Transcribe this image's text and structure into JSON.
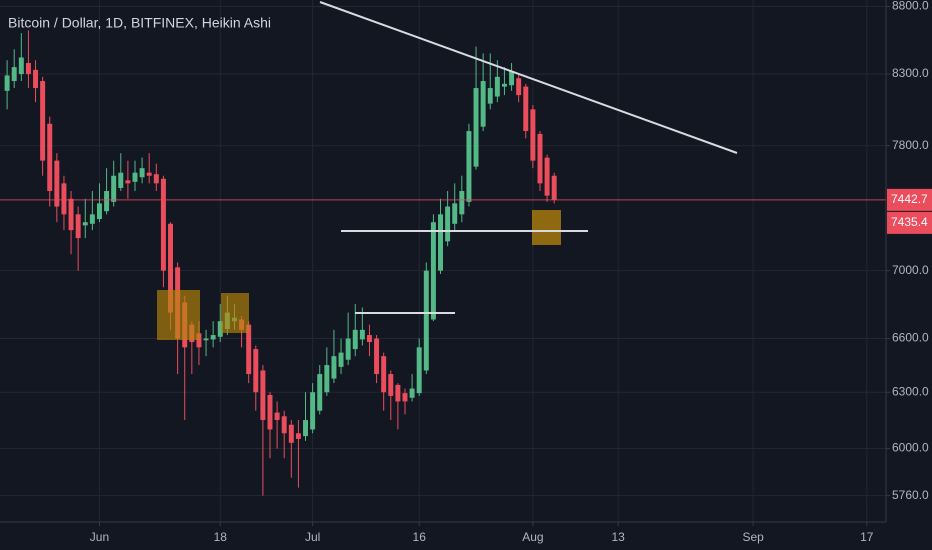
{
  "chart_data": {
    "type": "candlestick",
    "title": "Bitcoin / Dollar, 1D, BITFINEX, Heikin Ashi",
    "up_color": "#53b987",
    "down_color": "#eb4d5c",
    "log_scale": true,
    "grid": true,
    "xlim": [
      -1,
      123.7
    ],
    "xticks": [
      {
        "value": 13,
        "label": "Jun"
      },
      {
        "value": 30,
        "label": "18"
      },
      {
        "value": 43,
        "label": "Jul"
      },
      {
        "value": 58,
        "label": "16"
      },
      {
        "value": 74,
        "label": "Aug"
      },
      {
        "value": 86,
        "label": "13"
      },
      {
        "value": 105,
        "label": "Sep"
      },
      {
        "value": 121,
        "label": "17"
      }
    ],
    "ylim": [
      5630,
      8850
    ],
    "yticks": [
      {
        "value": 8800,
        "label": "8800.0"
      },
      {
        "value": 8300,
        "label": "8300.0"
      },
      {
        "value": 7800,
        "label": "7800.0"
      },
      {
        "value": 7000,
        "label": "7000.0"
      },
      {
        "value": 6600,
        "label": "6600.0"
      },
      {
        "value": 6300,
        "label": "6300.0"
      },
      {
        "value": 6000,
        "label": "6000.0"
      },
      {
        "value": 5760,
        "label": "5760.0"
      }
    ],
    "price_markers": [
      7442.7,
      7435.4
    ],
    "open": [
      8180,
      8250,
      8300,
      8380,
      8330,
      8250,
      7950,
      7700,
      7550,
      7450,
      7350,
      7280,
      7290,
      7320,
      7370,
      7430,
      7520,
      7570,
      7560,
      7590,
      7620,
      7610,
      7580,
      7290,
      7020,
      6810,
      6680,
      6630,
      6590,
      6595,
      6610,
      6655,
      6700,
      6710,
      6680,
      6540,
      6420,
      6285,
      6190,
      6170,
      6125,
      6080,
      6065,
      6100,
      6200,
      6300,
      6375,
      6440,
      6480,
      6540,
      6595,
      6620,
      6600,
      6500,
      6400,
      6340,
      6295,
      6270,
      6295,
      6420,
      6710,
      7000,
      7180,
      7290,
      7350,
      7430,
      7660,
      7930,
      8090,
      8140,
      8210,
      8220,
      8270,
      8210,
      8050,
      7880,
      7720,
      7600
    ],
    "high": [
      8400,
      8480,
      8600,
      8620,
      8400,
      8280,
      8000,
      7750,
      7600,
      7500,
      7400,
      7450,
      7500,
      7550,
      7650,
      7700,
      7750,
      7700,
      7700,
      7720,
      7750,
      7680,
      7600,
      7300,
      7050,
      6850,
      6700,
      6700,
      6650,
      6700,
      6800,
      6850,
      6800,
      6730,
      6700,
      6560,
      6450,
      6300,
      6250,
      6200,
      6150,
      6150,
      6300,
      6350,
      6450,
      6550,
      6650,
      6600,
      6750,
      6800,
      6780,
      6680,
      6620,
      6520,
      6420,
      6350,
      6320,
      6400,
      6600,
      7050,
      7350,
      7450,
      7500,
      7550,
      7600,
      7950,
      8500,
      8450,
      8450,
      8400,
      8350,
      8380,
      8300,
      8230,
      8080,
      7900,
      7740,
      7620
    ],
    "low": [
      8050,
      8200,
      8250,
      8200,
      8100,
      7600,
      7400,
      7300,
      7250,
      7100,
      7000,
      7200,
      7250,
      7300,
      7350,
      7400,
      7500,
      7450,
      7500,
      7550,
      7550,
      7500,
      6900,
      6650,
      6400,
      6150,
      6400,
      6450,
      6500,
      6550,
      6580,
      6620,
      6650,
      6550,
      6350,
      6200,
      5760,
      5950,
      6000,
      5950,
      5850,
      5800,
      6040,
      6080,
      6180,
      6280,
      6350,
      6400,
      6450,
      6500,
      6560,
      6500,
      6350,
      6200,
      6150,
      6100,
      6180,
      6250,
      6280,
      6400,
      6700,
      6980,
      7150,
      7250,
      7300,
      7400,
      7640,
      7900,
      8050,
      8100,
      8150,
      8180,
      8100,
      7850,
      7650,
      7500,
      7430,
      7420
    ],
    "close": [
      8290,
      8350,
      8420,
      8300,
      8200,
      7700,
      7500,
      7400,
      7350,
      7250,
      7200,
      7300,
      7350,
      7420,
      7500,
      7600,
      7620,
      7550,
      7620,
      7650,
      7600,
      7550,
      7000,
      6750,
      6600,
      6550,
      6580,
      6550,
      6600,
      6620,
      6700,
      6750,
      6720,
      6650,
      6400,
      6300,
      6150,
      6100,
      6150,
      6080,
      6030,
      6050,
      6150,
      6300,
      6400,
      6450,
      6500,
      6520,
      6600,
      6650,
      6650,
      6580,
      6400,
      6300,
      6280,
      6250,
      6250,
      6320,
      6550,
      7000,
      7300,
      7350,
      7400,
      7420,
      7500,
      7900,
      8200,
      8250,
      8200,
      8280,
      8230,
      8320,
      8150,
      7900,
      7700,
      7550,
      7470,
      7442.7
    ]
  }
}
